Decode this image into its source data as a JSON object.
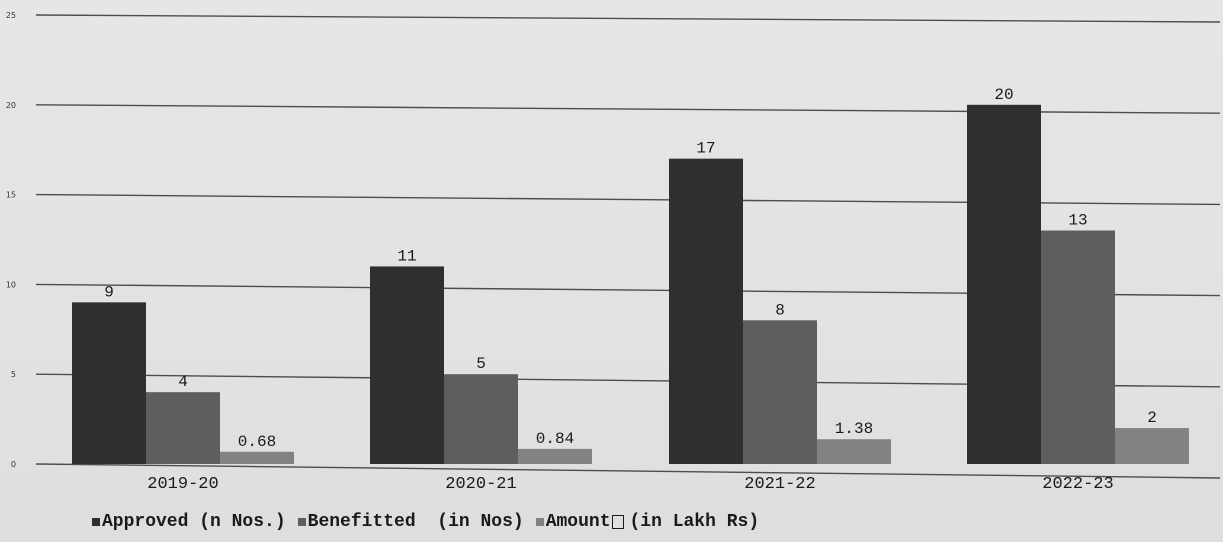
{
  "chart_data": {
    "type": "bar",
    "categories": [
      "2019-20",
      "2020-21",
      "2021-22",
      "2022-23"
    ],
    "series": [
      {
        "name": "Approved (n Nos.)",
        "values": [
          9,
          11,
          17,
          20
        ],
        "labels": [
          "9",
          "11",
          "17",
          "20"
        ],
        "color": "#2f2f2f"
      },
      {
        "name": "Benefitted  (in Nos)",
        "values": [
          4,
          5,
          8,
          13
        ],
        "labels": [
          "4",
          "5",
          "8",
          "13"
        ],
        "color": "#5e5e5e"
      },
      {
        "name": "Amount",
        "values": [
          0.68,
          0.84,
          1.38,
          2
        ],
        "labels": [
          "0.68",
          "0.84",
          "1.38",
          "2"
        ],
        "color": "#828282"
      }
    ],
    "legend_suffix": "(in Lakh Rs)",
    "y_ticks": [
      "0",
      "5",
      "10",
      "15",
      "20",
      "25"
    ],
    "ylim": [
      0,
      25
    ],
    "grid": true,
    "legend_position": "bottom"
  }
}
